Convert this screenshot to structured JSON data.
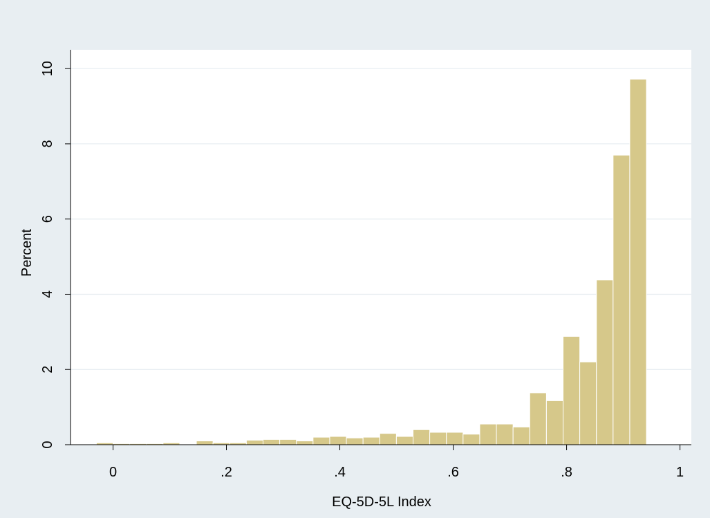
{
  "chart_data": {
    "type": "bar",
    "xlabel": "EQ-5D-5L Index",
    "ylabel": "Percent",
    "xlim": [
      -0.075,
      1.02
    ],
    "ylim": [
      0,
      10.5
    ],
    "x_ticks": [
      0,
      0.2,
      0.4,
      0.6,
      0.8,
      1
    ],
    "x_tick_labels": [
      "0",
      ".2",
      ".4",
      ".6",
      ".8",
      "1"
    ],
    "y_ticks": [
      0,
      2,
      4,
      6,
      8,
      10
    ],
    "y_tick_labels": [
      "0",
      "2",
      "4",
      "6",
      "8",
      "10"
    ],
    "grid": true,
    "bin_width": 0.0294,
    "bin_start": -0.0294,
    "values": [
      0.05,
      0.03,
      0.03,
      0.03,
      0.05,
      0.0,
      0.1,
      0.05,
      0.05,
      0.12,
      0.14,
      0.14,
      0.1,
      0.2,
      0.22,
      0.18,
      0.2,
      0.3,
      0.22,
      0.4,
      0.33,
      0.33,
      0.28,
      0.55,
      0.55,
      0.47,
      1.38,
      1.17,
      2.88,
      2.2,
      4.38,
      7.7,
      9.72
    ],
    "colors": {
      "background": "#e8eef2",
      "plot_area": "#ffffff",
      "grid": "#e5ecf0",
      "bar_fill": "#d6c88a",
      "bar_stroke": "#ffffff"
    }
  }
}
